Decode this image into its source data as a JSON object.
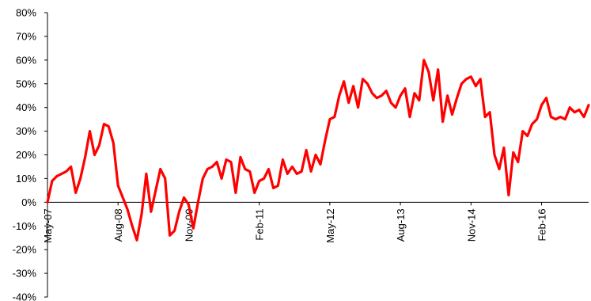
{
  "chart_data": {
    "type": "line",
    "title": "",
    "xlabel": "",
    "ylabel": "",
    "ylim": [
      -0.4,
      0.8
    ],
    "yticks": [
      -0.4,
      -0.3,
      -0.2,
      -0.1,
      0,
      0.1,
      0.2,
      0.3,
      0.4,
      0.5,
      0.6,
      0.7,
      0.8
    ],
    "ytick_labels": [
      "-40%",
      "-30%",
      "-20%",
      "-10%",
      "0%",
      "10%",
      "20%",
      "30%",
      "40%",
      "50%",
      "60%",
      "70%",
      "80%"
    ],
    "xlim": [
      "2007-05",
      "2016-12"
    ],
    "xticks": [
      "2007-05",
      "2008-08",
      "2009-11",
      "2011-02",
      "2012-05",
      "2013-08",
      "2014-11",
      "2016-02"
    ],
    "xtick_labels": [
      "May-07",
      "Aug-08",
      "Nov-09",
      "Feb-11",
      "May-12",
      "Aug-13",
      "Nov-14",
      "Feb-16"
    ],
    "grid": false,
    "legend": "none",
    "series": [
      {
        "color": "#ff0000",
        "x": [
          "2007-05",
          "2007-06",
          "2007-07",
          "2007-08",
          "2007-09",
          "2007-10",
          "2007-11",
          "2007-12",
          "2008-01",
          "2008-02",
          "2008-03",
          "2008-04",
          "2008-05",
          "2008-06",
          "2008-07",
          "2008-08",
          "2008-09",
          "2008-10",
          "2008-11",
          "2008-12",
          "2009-01",
          "2009-02",
          "2009-03",
          "2009-04",
          "2009-05",
          "2009-06",
          "2009-07",
          "2009-08",
          "2009-09",
          "2009-10",
          "2009-11",
          "2009-12",
          "2010-01",
          "2010-02",
          "2010-03",
          "2010-04",
          "2010-05",
          "2010-06",
          "2010-07",
          "2010-08",
          "2010-09",
          "2010-10",
          "2010-11",
          "2010-12",
          "2011-01",
          "2011-02",
          "2011-03",
          "2011-04",
          "2011-05",
          "2011-06",
          "2011-07",
          "2011-08",
          "2011-09",
          "2011-10",
          "2011-11",
          "2011-12",
          "2012-01",
          "2012-02",
          "2012-03",
          "2012-04",
          "2012-05",
          "2012-06",
          "2012-07",
          "2012-08",
          "2012-09",
          "2012-10",
          "2012-11",
          "2012-12",
          "2013-01",
          "2013-02",
          "2013-03",
          "2013-04",
          "2013-05",
          "2013-06",
          "2013-07",
          "2013-08",
          "2013-09",
          "2013-10",
          "2013-11",
          "2013-12",
          "2014-01",
          "2014-02",
          "2014-03",
          "2014-04",
          "2014-05",
          "2014-06",
          "2014-07",
          "2014-08",
          "2014-09",
          "2014-10",
          "2014-11",
          "2014-12",
          "2015-01",
          "2015-02",
          "2015-03",
          "2015-04",
          "2015-05",
          "2015-06",
          "2015-07",
          "2015-08",
          "2015-09",
          "2015-10",
          "2015-11",
          "2015-12",
          "2016-01",
          "2016-02",
          "2016-03",
          "2016-04",
          "2016-05",
          "2016-06",
          "2016-07",
          "2016-08",
          "2016-09",
          "2016-10",
          "2016-11",
          "2016-12"
        ],
        "values": [
          0.0,
          0.09,
          0.11,
          0.12,
          0.13,
          0.15,
          0.04,
          0.1,
          0.19,
          0.3,
          0.2,
          0.24,
          0.33,
          0.32,
          0.25,
          0.07,
          0.02,
          -0.03,
          -0.1,
          -0.16,
          -0.05,
          0.12,
          -0.04,
          0.05,
          0.14,
          0.1,
          -0.14,
          -0.12,
          -0.04,
          0.02,
          -0.01,
          -0.11,
          0.0,
          0.1,
          0.14,
          0.15,
          0.17,
          0.1,
          0.18,
          0.17,
          0.04,
          0.19,
          0.14,
          0.13,
          0.04,
          0.09,
          0.1,
          0.14,
          0.06,
          0.07,
          0.18,
          0.12,
          0.15,
          0.12,
          0.13,
          0.22,
          0.13,
          0.2,
          0.16,
          0.26,
          0.35,
          0.36,
          0.45,
          0.51,
          0.42,
          0.49,
          0.4,
          0.52,
          0.5,
          0.46,
          0.44,
          0.45,
          0.47,
          0.42,
          0.4,
          0.45,
          0.48,
          0.36,
          0.46,
          0.43,
          0.6,
          0.55,
          0.43,
          0.56,
          0.34,
          0.45,
          0.37,
          0.44,
          0.5,
          0.52,
          0.53,
          0.49,
          0.52,
          0.36,
          0.38,
          0.2,
          0.14,
          0.23,
          0.03,
          0.21,
          0.17,
          0.3,
          0.28,
          0.33,
          0.35,
          0.41,
          0.44,
          0.36,
          0.35,
          0.36,
          0.35,
          0.4,
          0.38,
          0.39,
          0.36,
          0.41
        ]
      }
    ]
  }
}
